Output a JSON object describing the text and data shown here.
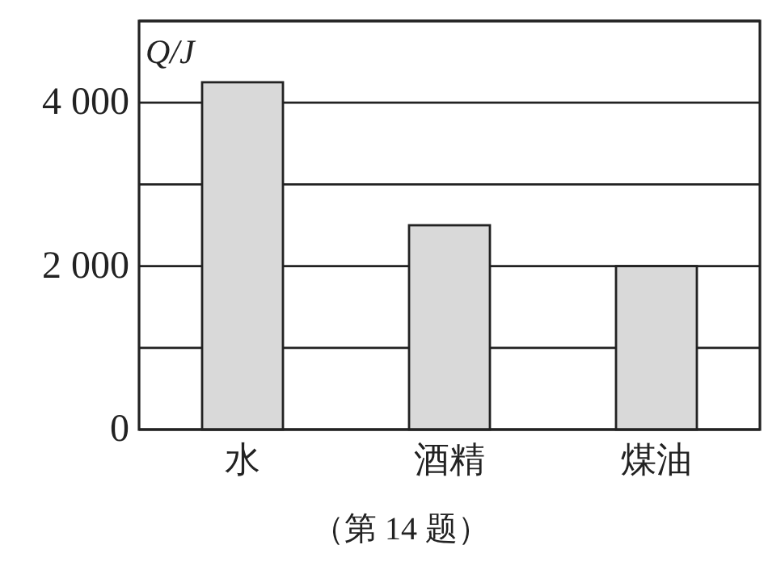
{
  "chart_data": {
    "type": "bar",
    "categories": [
      "水",
      "酒精",
      "煤油"
    ],
    "values": [
      4250,
      2500,
      2000
    ],
    "color": "#d9d9d9",
    "ylabel": "Q/J",
    "ylim": [
      0,
      5000
    ],
    "yticks": [
      0,
      {
        "value": 1000,
        "label": null
      },
      {
        "value": 2000,
        "label": "2 000"
      },
      {
        "value": 3000,
        "label": null
      },
      {
        "value": 4000,
        "label": "4 000"
      },
      {
        "value": 5000,
        "label": null
      }
    ],
    "grid": "y",
    "annotations": [
      "（第 14 题）"
    ]
  }
}
